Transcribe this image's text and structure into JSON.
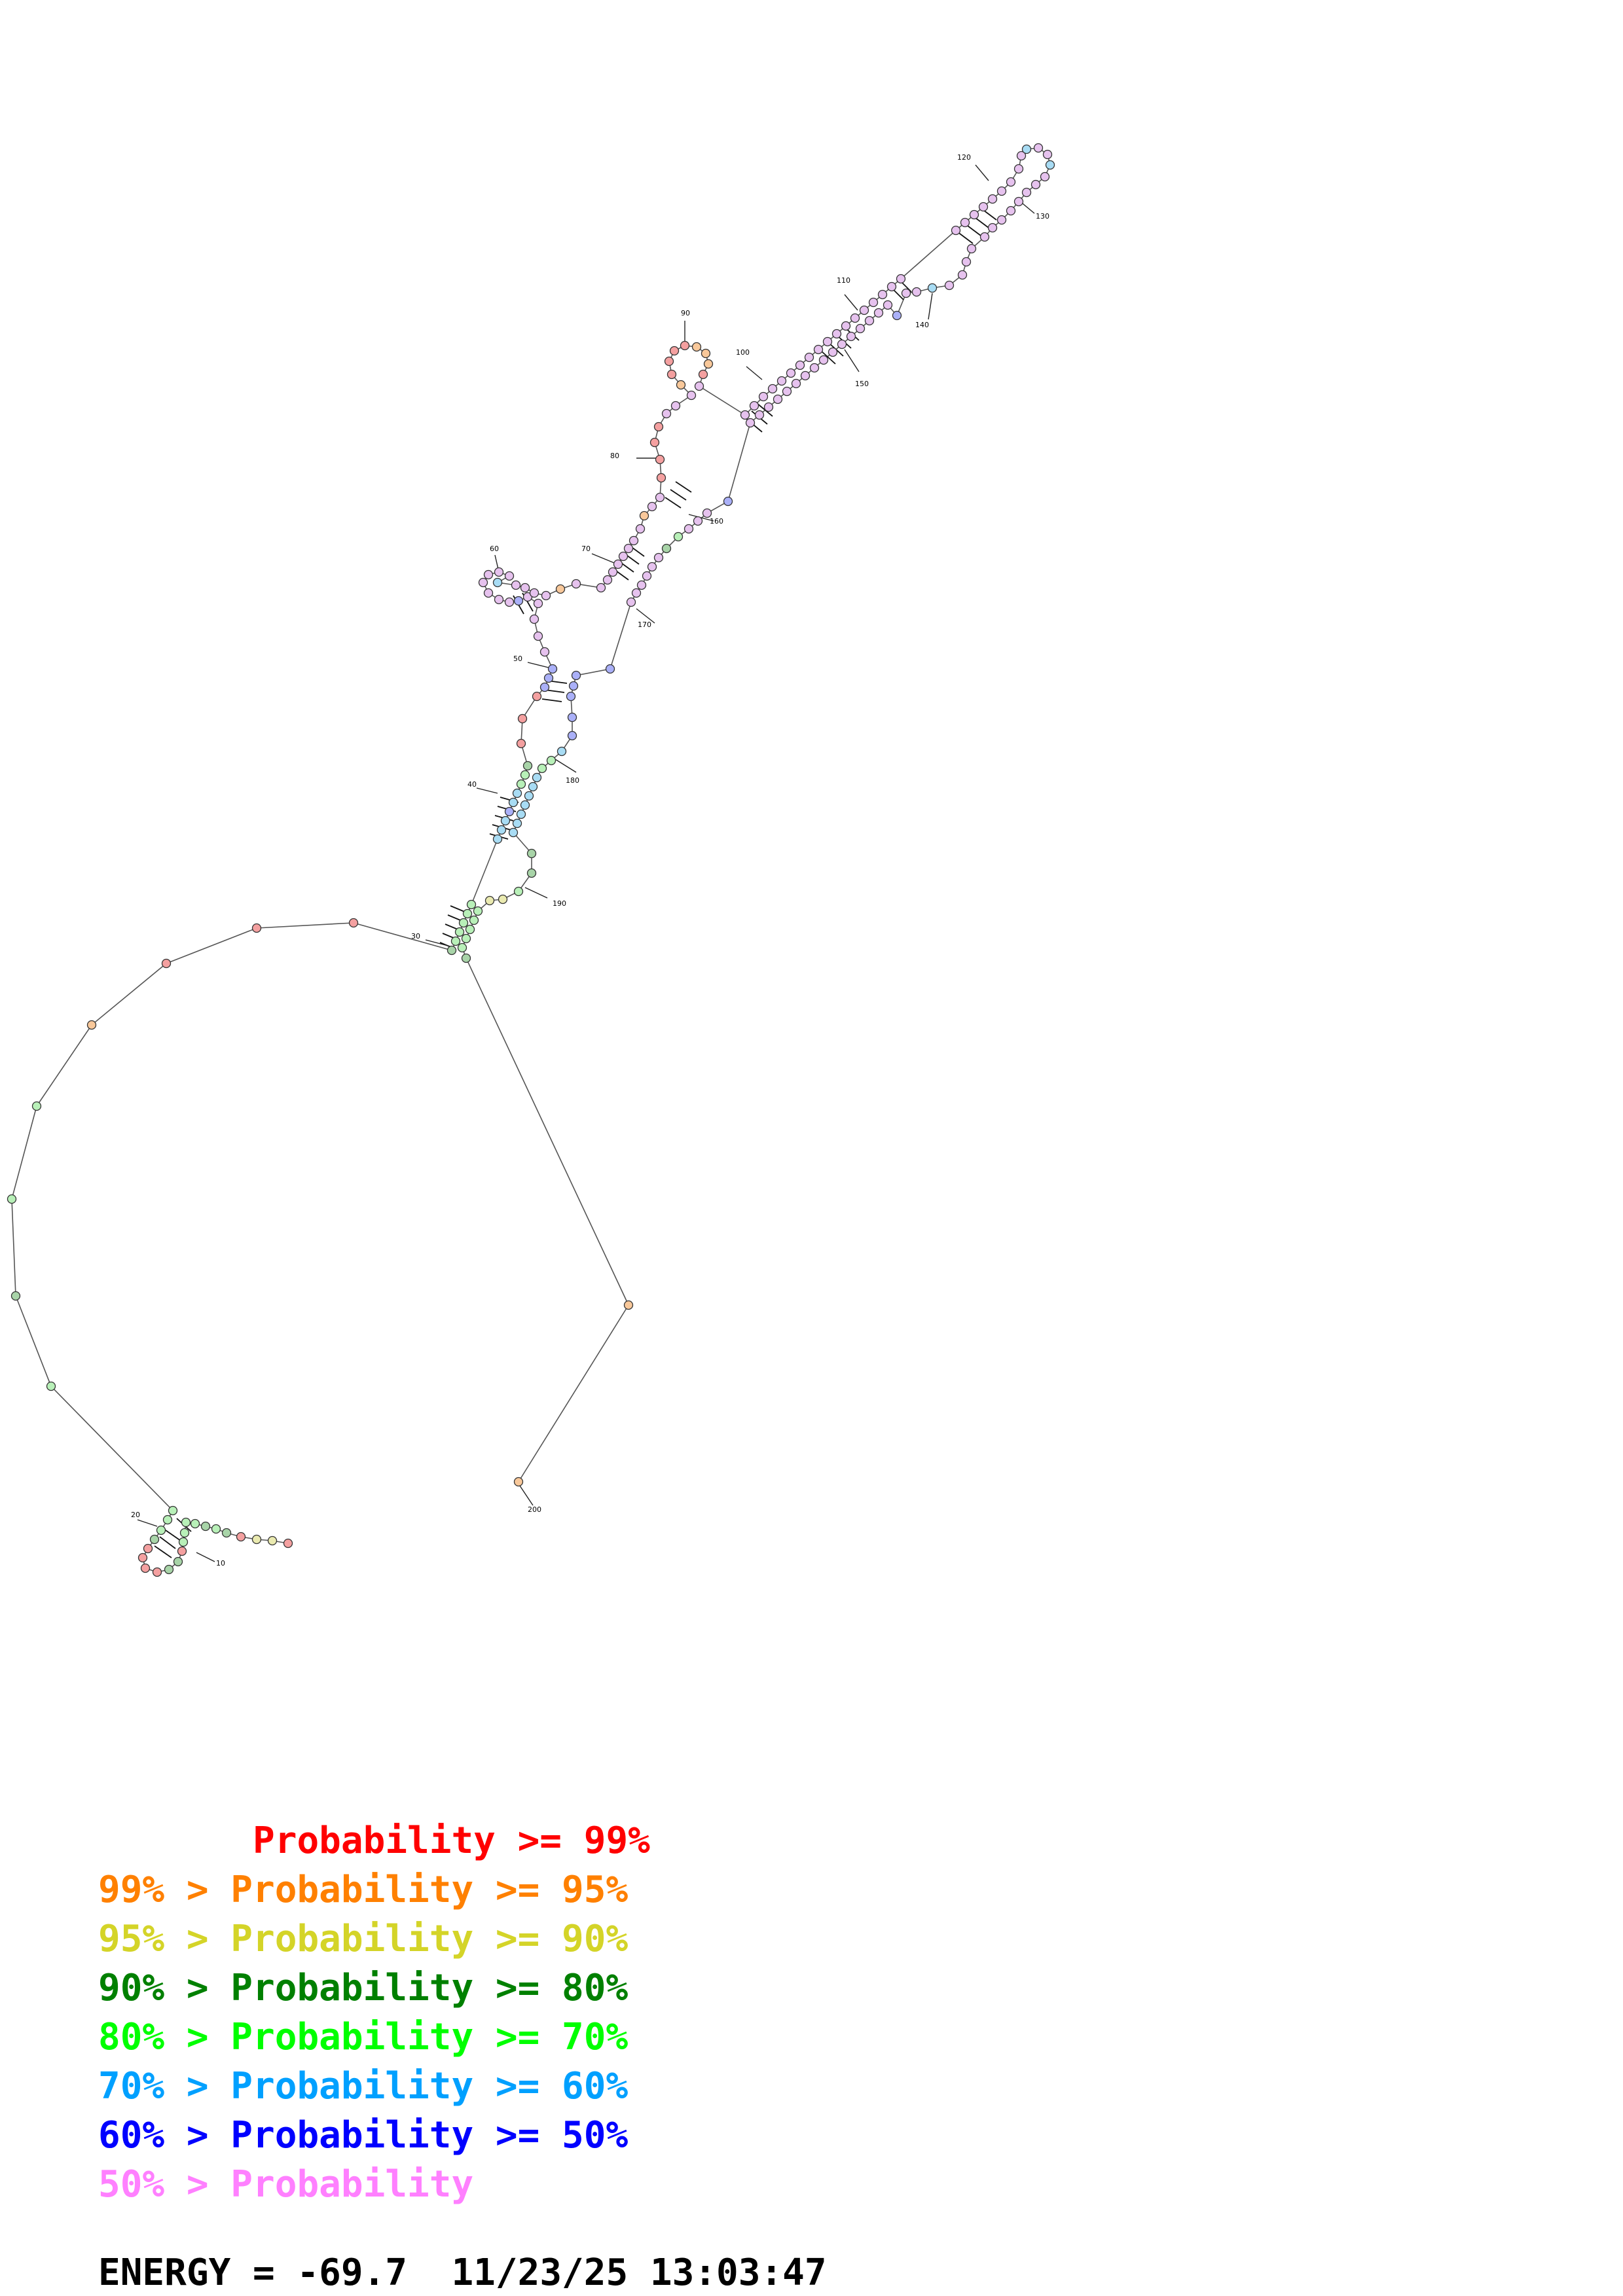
{
  "legend": [
    {
      "prefix": "       ",
      "label": "Probability >= 99%",
      "color": "#ff0000"
    },
    {
      "prefix": "99% > ",
      "label": "Probability >= 95%",
      "color": "#ff8000"
    },
    {
      "prefix": "95% > ",
      "label": "Probability >= 90%",
      "color": "#d4d428"
    },
    {
      "prefix": "90% > ",
      "label": "Probability >= 80%",
      "color": "#008000"
    },
    {
      "prefix": "80% > ",
      "label": "Probability >= 70%",
      "color": "#00ff00"
    },
    {
      "prefix": "70% > ",
      "label": "Probability >= 60%",
      "color": "#00a0ff"
    },
    {
      "prefix": "60% > ",
      "label": "Probability >= 50%",
      "color": "#0000ff"
    },
    {
      "prefix": "50% > ",
      "label": "Probability",
      "color": "#ff80ff"
    }
  ],
  "energy": {
    "label": "ENERGY = ",
    "value": "-69.7",
    "date": "11/23/25",
    "time": "13:03:47"
  },
  "position_labels": [
    "10",
    "20",
    "30",
    "40",
    "50",
    "60",
    "70",
    "80",
    "90",
    "100",
    "110",
    "120",
    "130",
    "140",
    "150",
    "160",
    "170",
    "180",
    "190",
    "200"
  ],
  "fill_colors": {
    "red": "#f4a0a0",
    "orange": "#f8c89a",
    "yellow": "#eaeab0",
    "darkgreen": "#a8d4a8",
    "green": "#b8f0b8",
    "cyan": "#a8dcf4",
    "blue": "#aab0f8",
    "pink": "#e6c2ee"
  }
}
